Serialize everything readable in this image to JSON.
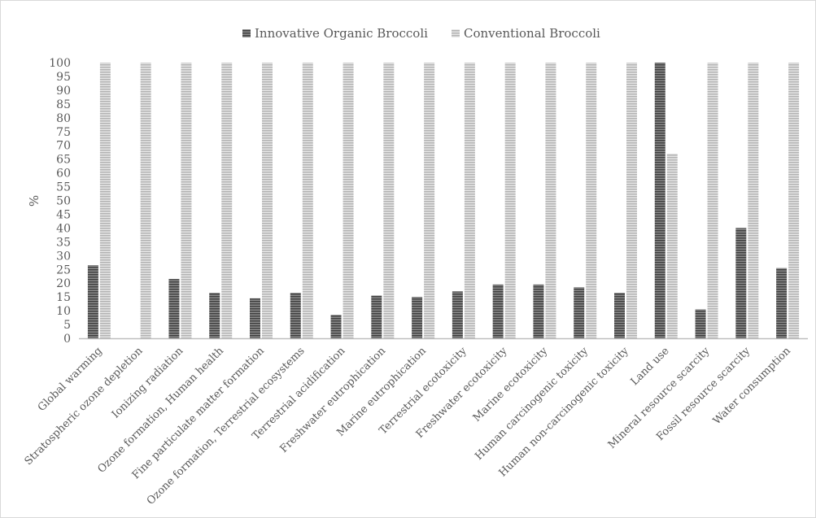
{
  "chart_data": {
    "type": "bar",
    "title": "",
    "xlabel": "",
    "ylabel": "%",
    "ylim": [
      0,
      100
    ],
    "ytick_step": 5,
    "grid": false,
    "legend_position": "top",
    "categories": [
      "Global warming",
      "Stratospheric ozone depletion",
      "Ionizing radiation",
      "Ozone formation, Human health",
      "Fine particulate matter formation",
      "Ozone formation, Terrestrial ecosystems",
      "Terrestrial acidification",
      "Freshwater eutrophication",
      "Marine eutrophication",
      "Terrestrial ecotoxicity",
      "Freshwater ecotoxicity",
      "Marine ecotoxicity",
      "Human carcinogenic toxicity",
      "Human non-carcinogenic toxicity",
      "Land use",
      "Mineral resource scarcity",
      "Fossil resource scarcity",
      "Water consumption"
    ],
    "series": [
      {
        "name": "Innovative Organic Broccoli",
        "color": "#595959",
        "pattern": "dark-horizontal-stripes",
        "values": [
          26.5,
          0,
          21.5,
          16.5,
          14.5,
          16.5,
          8.5,
          15.5,
          15,
          17,
          19.5,
          19.5,
          18.5,
          16.5,
          100,
          10.5,
          40,
          25.5
        ]
      },
      {
        "name": "Conventional Broccoli",
        "color": "#bfbfbf",
        "pattern": "light-horizontal-stripes",
        "values": [
          100,
          100,
          100,
          100,
          100,
          100,
          100,
          100,
          100,
          100,
          100,
          100,
          100,
          100,
          67,
          100,
          100,
          100
        ]
      }
    ]
  }
}
